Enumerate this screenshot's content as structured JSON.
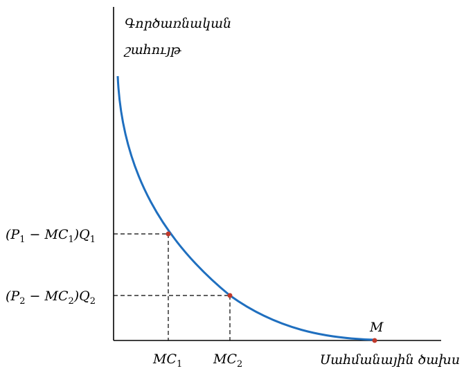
{
  "y_axis_label": {
    "line1": "Գործառնական",
    "line2": "շահույթ"
  },
  "x_axis_label": "Սահմանային ծախս",
  "y_ticks": [
    {
      "main": "(P",
      "s1": "1",
      "mid": " − MC",
      "s2": "1",
      "close": ")Q",
      "s3": "1"
    },
    {
      "main": "(P",
      "s1": "2",
      "mid": " − MC",
      "s2": "2",
      "close": ")Q",
      "s3": "2"
    }
  ],
  "x_ticks": [
    {
      "main": "MC",
      "sub": "1"
    },
    {
      "main": "MC",
      "sub": "2"
    }
  ],
  "point_label": "M",
  "colors": {
    "curve": "#1f6fbf",
    "point": "#c0392b",
    "axis": "#000000"
  }
}
